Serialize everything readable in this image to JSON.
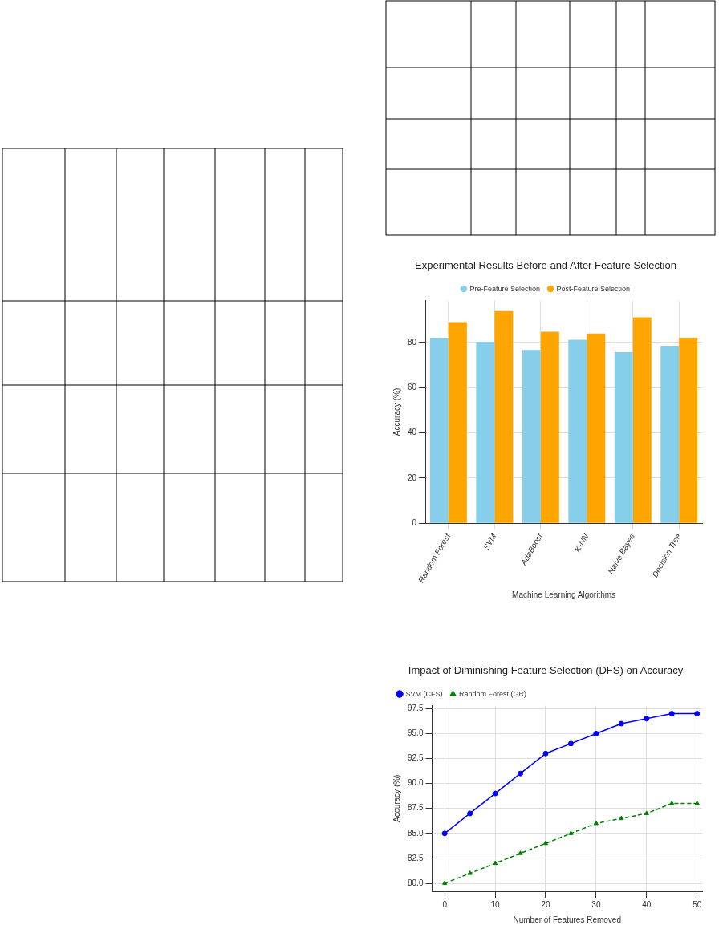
{
  "chart_data": [
    {
      "type": "bar",
      "title": "Experimental Results Before and After Feature Selection",
      "xlabel": "Machine Learning Algorithms",
      "ylabel": "Accuracy (%)",
      "categories": [
        "Random Forest",
        "SVM",
        "AdaBoost",
        "K-NN",
        "Naive Bayes",
        "Decision Tree"
      ],
      "series": [
        {
          "name": "Pre-Feature Selection",
          "color": "#87ceeb",
          "values": [
            82,
            80.2,
            76.6,
            81.2,
            75.7,
            78.5
          ]
        },
        {
          "name": "Post-Feature Selection",
          "color": "#ffa500",
          "values": [
            89,
            93.8,
            84.7,
            83.9,
            91.1,
            82
          ]
        }
      ],
      "ylim": [
        0,
        98.5
      ],
      "yticks": [
        0,
        20,
        40,
        60,
        80
      ],
      "grid": true,
      "legend": "top"
    },
    {
      "type": "line",
      "title": "Impact of Diminishing Feature Selection (DFS) on Accuracy",
      "xlabel": "Number of Features Removed",
      "ylabel": "Accuracy (%)",
      "x": [
        0,
        5,
        10,
        15,
        20,
        25,
        30,
        35,
        40,
        45,
        50
      ],
      "series": [
        {
          "name": "SVM (CFS)",
          "color": "#0000ff",
          "marker": "circle",
          "line_style": "solid",
          "values": [
            85,
            87,
            89,
            91,
            93,
            94,
            95,
            96,
            96.5,
            97,
            97
          ]
        },
        {
          "name": "Random Forest (GR)",
          "color": "#008000",
          "marker": "triangle",
          "line_style": "dashed",
          "values": [
            80,
            81,
            82,
            83,
            84,
            85,
            86,
            86.5,
            87,
            88,
            88
          ]
        }
      ],
      "xlim": [
        -2.5,
        51
      ],
      "xticks": [
        0,
        10,
        20,
        30,
        40,
        50
      ],
      "ylim": [
        79.2,
        97.8
      ],
      "yticks": [
        {
          "value": 80,
          "label": "80.0"
        },
        {
          "value": 82.5,
          "label": "82.5"
        },
        {
          "value": 85,
          "label": "85.0"
        },
        {
          "value": 87.5,
          "label": "87.5"
        },
        {
          "value": 90,
          "label": "90.0"
        },
        {
          "value": 92.5,
          "label": "92.5"
        },
        {
          "value": 95,
          "label": "95.0"
        },
        {
          "value": 97.5,
          "label": "97.5"
        }
      ],
      "grid": true,
      "legend": "top left"
    }
  ]
}
